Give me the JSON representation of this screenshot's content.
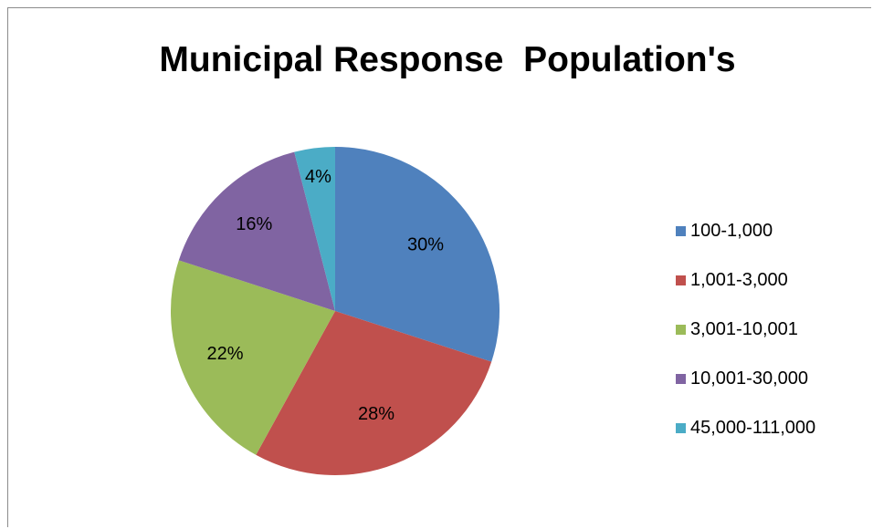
{
  "chart_data": {
    "type": "pie",
    "title": "Municipal Response  Population's",
    "start_angle_deg": 0,
    "direction": "clockwise",
    "slices": [
      {
        "label": "100-1,000",
        "value": 30,
        "data_label": "30%",
        "color": "#4F81BD"
      },
      {
        "label": "1,001-3,000",
        "value": 28,
        "data_label": "28%",
        "color": "#C0504D"
      },
      {
        "label": "3,001-10,001",
        "value": 22,
        "data_label": "22%",
        "color": "#9BBB59"
      },
      {
        "label": "10,001-30,000",
        "value": 16,
        "data_label": "16%",
        "color": "#8064A2"
      },
      {
        "label": "45,000-111,000",
        "value": 4,
        "data_label": "4%",
        "color": "#4BACC6"
      }
    ],
    "legend_position": "right"
  }
}
